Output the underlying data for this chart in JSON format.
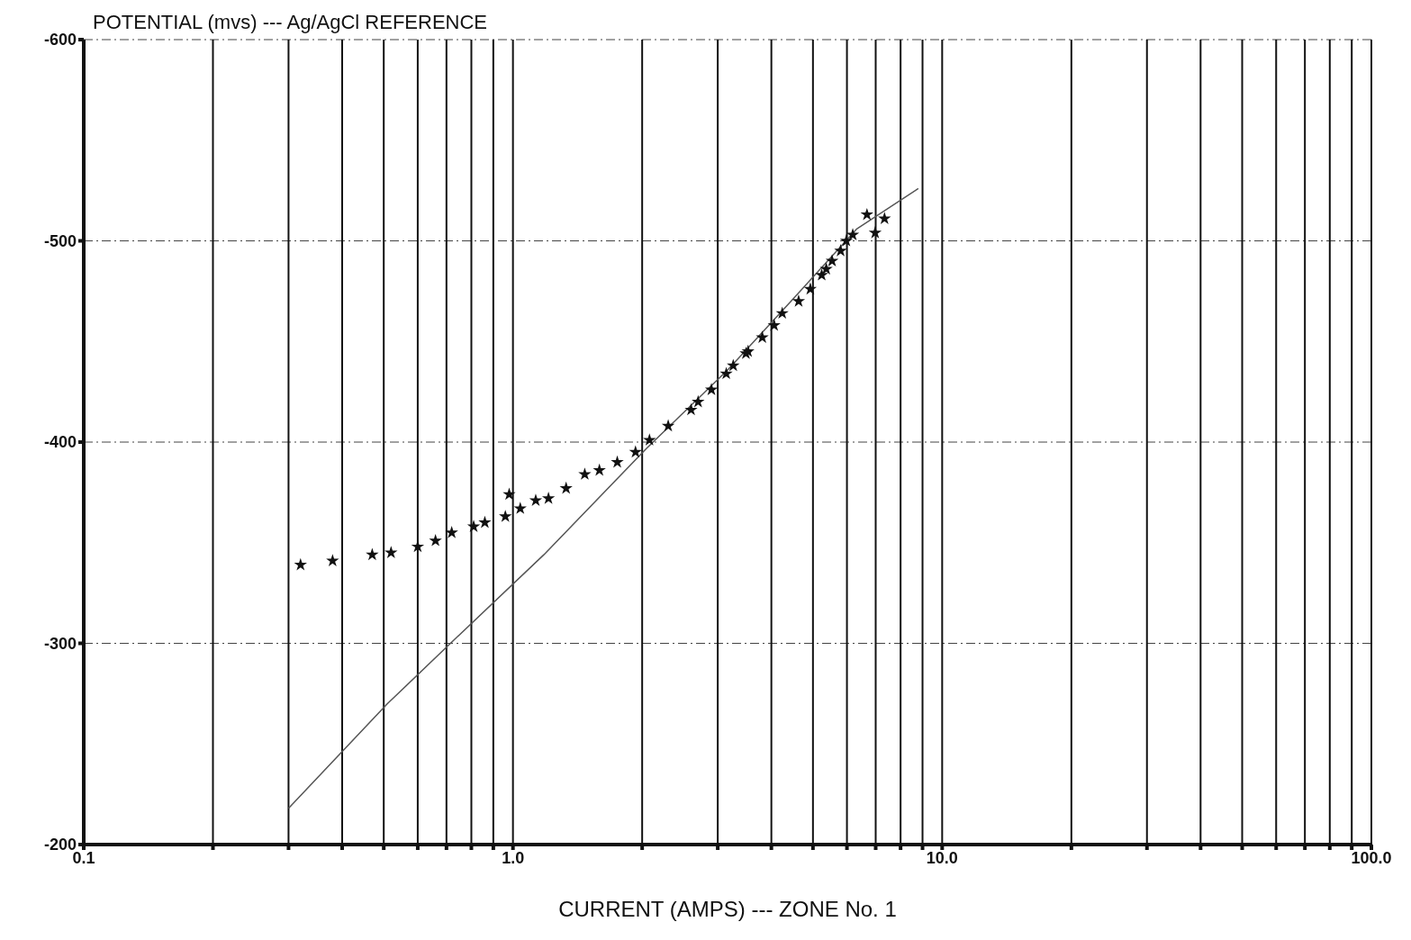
{
  "chart_data": {
    "type": "scatter",
    "ylabel": "POTENTIAL (mvs) --- Ag/AgCl REFERENCE",
    "xlabel": "CURRENT (AMPS) --- ZONE No. 1",
    "log": "x",
    "xlim": [
      0.1,
      100
    ],
    "xticks": [
      {
        "value": 0.1,
        "label": "0.1"
      },
      {
        "value": 0.2,
        "label": null
      },
      {
        "value": 0.3,
        "label": null
      },
      {
        "value": 0.4,
        "label": null
      },
      {
        "value": 0.5,
        "label": null
      },
      {
        "value": 0.6,
        "label": null
      },
      {
        "value": 0.7,
        "label": null
      },
      {
        "value": 0.8,
        "label": null
      },
      {
        "value": 0.9,
        "label": null
      },
      {
        "value": 1,
        "label": "1.0"
      },
      {
        "value": 2,
        "label": null
      },
      {
        "value": 3,
        "label": null
      },
      {
        "value": 4,
        "label": null
      },
      {
        "value": 5,
        "label": null
      },
      {
        "value": 6,
        "label": null
      },
      {
        "value": 7,
        "label": null
      },
      {
        "value": 8,
        "label": null
      },
      {
        "value": 9,
        "label": null
      },
      {
        "value": 10,
        "label": "10.0"
      },
      {
        "value": 20,
        "label": null
      },
      {
        "value": 30,
        "label": null
      },
      {
        "value": 40,
        "label": null
      },
      {
        "value": 50,
        "label": null
      },
      {
        "value": 60,
        "label": null
      },
      {
        "value": 70,
        "label": null
      },
      {
        "value": 80,
        "label": null
      },
      {
        "value": 90,
        "label": null
      },
      {
        "value": 100,
        "label": "100.0"
      }
    ],
    "ylim": [
      -200,
      -600
    ],
    "yticks": [
      -600,
      -500,
      -400,
      -300,
      -200
    ],
    "grid": true,
    "legend": false,
    "series": [
      {
        "color": "#111111",
        "marker": "star",
        "x": [
          0.32,
          0.38,
          0.47,
          0.52,
          0.6,
          0.66,
          0.72,
          0.81,
          0.86,
          0.96,
          0.98,
          1.04,
          1.13,
          1.21,
          1.33,
          1.47,
          1.59,
          1.75,
          1.93,
          2.08,
          2.3,
          2.6,
          2.7,
          2.9,
          3.14,
          3.26,
          3.49,
          3.53,
          3.81,
          4.06,
          4.24,
          4.63,
          4.93,
          5.24,
          5.37,
          5.54,
          5.8,
          5.98,
          6.19,
          6.68,
          6.98,
          7.34
        ],
        "values": [
          -339,
          -341,
          -344,
          -345,
          -348,
          -351,
          -355,
          -358,
          -360,
          -363,
          -374,
          -367,
          -371,
          -372,
          -377,
          -384,
          -386,
          -390,
          -395,
          -401,
          -408,
          -416,
          -420,
          -426,
          -434,
          -438,
          -444,
          -445,
          -452,
          -458,
          -464,
          -470,
          -476,
          -483,
          -486,
          -490,
          -495,
          -500,
          -503,
          -513,
          -504,
          -511
        ]
      },
      {
        "type": "line",
        "color": "#555555",
        "marker": "none",
        "line_style": "solid",
        "x": [
          0.3,
          0.51,
          0.74,
          1.18,
          2.05,
          3.17,
          4.49,
          6.33,
          8.8
        ],
        "values": [
          -218,
          -270,
          -303,
          -344,
          -397,
          -436,
          -471,
          -506,
          -526
        ]
      }
    ]
  }
}
